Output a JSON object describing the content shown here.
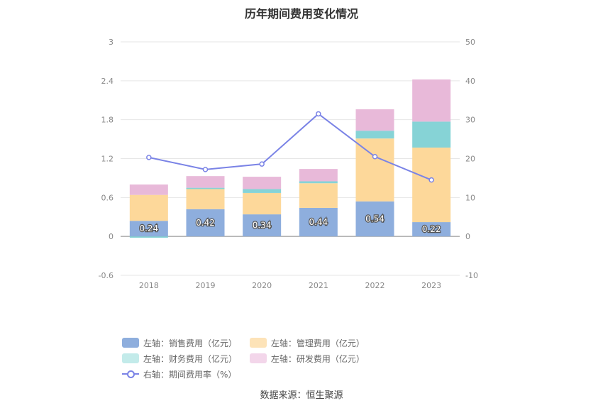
{
  "chart_data": {
    "type": "bar",
    "title": "历年期间费用变化情况",
    "categories": [
      "2018",
      "2019",
      "2020",
      "2021",
      "2022",
      "2023"
    ],
    "series": [
      {
        "name": "左轴：销售费用（亿元）",
        "axis": "left",
        "type": "bar",
        "stack": "cost",
        "color": "#8eaedd",
        "values": [
          0.24,
          0.42,
          0.34,
          0.44,
          0.54,
          0.22
        ],
        "labels": [
          "0.24",
          "0.42",
          "0.34",
          "0.44",
          "0.54",
          "0.22"
        ]
      },
      {
        "name": "左轴：管理费用（亿元）",
        "axis": "left",
        "type": "bar",
        "stack": "cost",
        "color": "#fdd89a",
        "values": [
          0.4,
          0.31,
          0.33,
          0.38,
          0.97,
          1.15
        ]
      },
      {
        "name": "左轴：财务费用（亿元）",
        "axis": "left",
        "type": "bar",
        "stack": "cost",
        "color": "#86d3d6",
        "values": [
          -0.02,
          0.02,
          0.06,
          0.03,
          0.12,
          0.4
        ]
      },
      {
        "name": "左轴：研发费用（亿元）",
        "axis": "left",
        "type": "bar",
        "stack": "cost",
        "color": "#e8b9d9",
        "values": [
          0.16,
          0.18,
          0.19,
          0.19,
          0.33,
          0.65
        ]
      },
      {
        "name": "右轴：期间费用率（%）",
        "axis": "right",
        "type": "line",
        "color": "#7a83e6",
        "values": [
          20.3,
          17.2,
          18.6,
          31.5,
          20.5,
          14.5
        ]
      }
    ],
    "left_axis": {
      "ylim": [
        -0.6,
        3
      ],
      "ticks": [
        "3",
        "2.4",
        "1.8",
        "1.2",
        "0.6",
        "0",
        "-0.6"
      ]
    },
    "right_axis": {
      "ylim": [
        -10,
        50
      ],
      "ticks": [
        "50",
        "40",
        "30",
        "20",
        "10",
        "0",
        "-10"
      ]
    },
    "legend_position": "bottom",
    "grid": true
  },
  "legend": [
    {
      "label": "左轴：销售费用（亿元）",
      "color": "#8eaedd",
      "kind": "bar"
    },
    {
      "label": "左轴：管理费用（亿元）",
      "color": "#fde3b8",
      "kind": "bar"
    },
    {
      "label": "左轴：财务费用（亿元）",
      "color": "#c3ebea",
      "kind": "bar"
    },
    {
      "label": "左轴：研发费用（亿元）",
      "color": "#f3d6ea",
      "kind": "bar"
    },
    {
      "label": "右轴：期间费用率（%）",
      "color": "#7a83e6",
      "kind": "line"
    }
  ],
  "source": "数据来源：恒生聚源"
}
